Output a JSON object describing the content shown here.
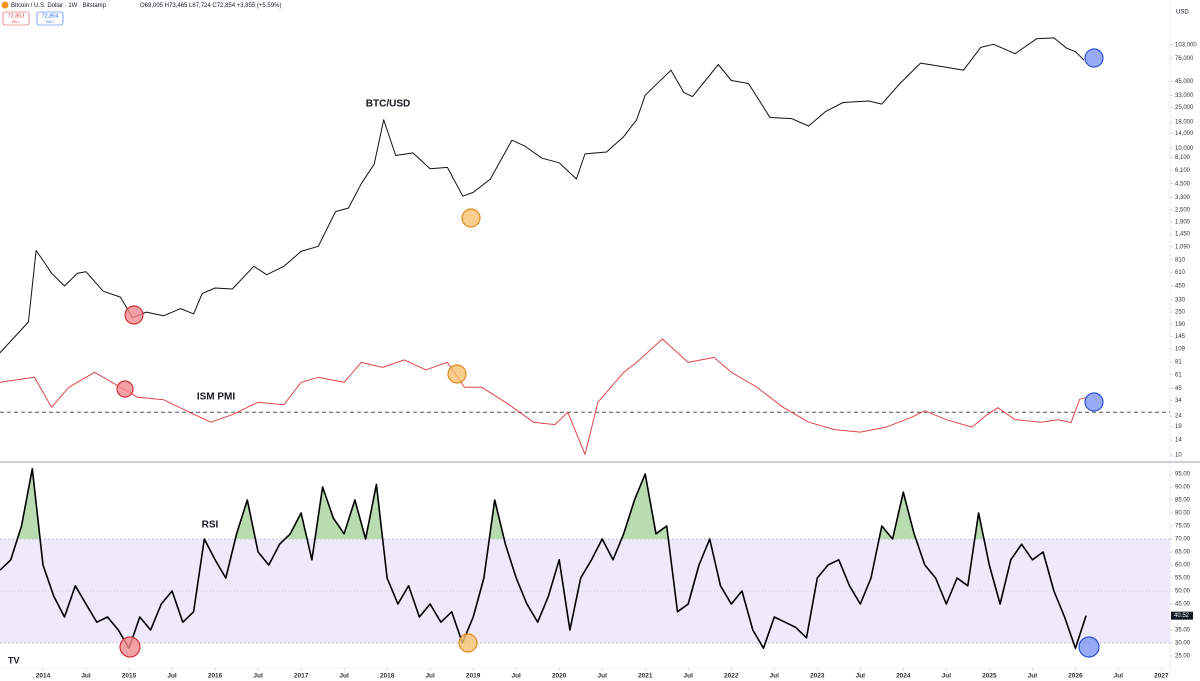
{
  "header": {
    "symbol": "Bitcoin / U.S. Dollar · 1W · Bitstamp",
    "ohlc": "O69,005 H73,465 L67,724 C72,854 +3,855 (+5.59%)",
    "sell_price": "72,853",
    "sell": "SELL",
    "buy_price": "72,854",
    "buy": "BUY",
    "currency": "USD"
  },
  "chart_data": [
    {
      "type": "line",
      "annotation": "BTC/USD",
      "color": "#111111",
      "log_scale": true,
      "xlim": [
        2013.5,
        2027.1
      ],
      "ylim": [
        10,
        150000
      ],
      "x": [
        2013.5,
        2013.83,
        2013.92,
        2014.0,
        2014.1,
        2014.25,
        2014.4,
        2014.5,
        2014.7,
        2014.9,
        2015.04,
        2015.2,
        2015.4,
        2015.6,
        2015.75,
        2015.85,
        2016.0,
        2016.2,
        2016.45,
        2016.6,
        2016.8,
        2017.0,
        2017.2,
        2017.4,
        2017.55,
        2017.7,
        2017.85,
        2017.96,
        2018.1,
        2018.3,
        2018.5,
        2018.7,
        2018.88,
        2019.0,
        2019.2,
        2019.45,
        2019.6,
        2019.8,
        2020.0,
        2020.2,
        2020.3,
        2020.55,
        2020.75,
        2020.9,
        2021.0,
        2021.3,
        2021.45,
        2021.55,
        2021.85,
        2022.0,
        2022.2,
        2022.45,
        2022.7,
        2022.9,
        2023.1,
        2023.3,
        2023.6,
        2023.75,
        2023.95,
        2024.2,
        2024.5,
        2024.7,
        2024.9,
        2025.05,
        2025.3,
        2025.55,
        2025.75,
        2025.9,
        2026.0,
        2026.1
      ],
      "values": [
        100,
        200,
        1000,
        800,
        600,
        450,
        600,
        620,
        400,
        350,
        220,
        250,
        230,
        270,
        240,
        380,
        430,
        420,
        700,
        580,
        700,
        980,
        1100,
        2400,
        2600,
        4500,
        7000,
        19000,
        8500,
        9000,
        6300,
        6500,
        3400,
        3700,
        5000,
        12000,
        10500,
        8000,
        7200,
        5000,
        8800,
        9200,
        13000,
        19000,
        33000,
        58000,
        35000,
        32000,
        66000,
        46000,
        43000,
        20000,
        19500,
        16500,
        23000,
        28000,
        29000,
        27000,
        42000,
        68000,
        62000,
        58000,
        97000,
        104000,
        84000,
        118000,
        120000,
        95000,
        88000,
        72854
      ],
      "yticks": [
        {
          "value": 103000,
          "label": "103,000"
        },
        {
          "value": 76000,
          "label": "76,000"
        },
        {
          "value": 45000,
          "label": "45,000"
        },
        {
          "value": 33000,
          "label": "33,000"
        },
        {
          "value": 25000,
          "label": "25,000"
        },
        {
          "value": 18000,
          "label": "18,000"
        },
        {
          "value": 14000,
          "label": "14,000"
        },
        {
          "value": 10000,
          "label": "10,000"
        },
        {
          "value": 8100,
          "label": "8,100"
        },
        {
          "value": 6100,
          "label": "6,100"
        },
        {
          "value": 4500,
          "label": "4,500"
        },
        {
          "value": 3300,
          "label": "3,300"
        },
        {
          "value": 2500,
          "label": "2,500"
        },
        {
          "value": 1900,
          "label": "1,900"
        },
        {
          "value": 1450,
          "label": "1,450"
        },
        {
          "value": 1090,
          "label": "1,090"
        },
        810,
        610,
        450,
        330,
        250,
        190,
        145,
        109,
        81,
        61,
        45,
        34,
        24,
        19,
        14,
        10
      ]
    },
    {
      "type": "line",
      "annotation": "ISM PMI",
      "color": "#e0474c",
      "xlim": [
        2013.5,
        2027.1
      ],
      "ylim": [
        40,
        66.5
      ],
      "reference_line": 50,
      "x": [
        2013.5,
        2013.9,
        2014.1,
        2014.3,
        2014.6,
        2014.9,
        2015.1,
        2015.4,
        2015.7,
        2015.95,
        2016.2,
        2016.5,
        2016.8,
        2017.0,
        2017.2,
        2017.5,
        2017.7,
        2017.95,
        2018.2,
        2018.45,
        2018.7,
        2018.9,
        2019.1,
        2019.4,
        2019.7,
        2019.95,
        2020.1,
        2020.3,
        2020.45,
        2020.75,
        2020.9,
        2021.2,
        2021.5,
        2021.8,
        2022.0,
        2022.3,
        2022.6,
        2022.9,
        2023.2,
        2023.5,
        2023.8,
        2024.1,
        2024.25,
        2024.5,
        2024.8,
        2024.95,
        2025.1,
        2025.3,
        2025.6,
        2025.8,
        2025.95,
        2026.05,
        2026.15
      ],
      "values": [
        56,
        57,
        51,
        55,
        58,
        55,
        53,
        52.5,
        50,
        48,
        49.5,
        52,
        51.5,
        56,
        57,
        56,
        60,
        59,
        60.5,
        58.5,
        60,
        55,
        55,
        51.7,
        48,
        47.5,
        50,
        41.5,
        52,
        58,
        60,
        64.7,
        60,
        61,
        58,
        55,
        51,
        48,
        46.5,
        46,
        47,
        49,
        50.3,
        48.5,
        47,
        49.2,
        50.9,
        48.5,
        48,
        48.5,
        47.9,
        52.6,
        53
      ]
    },
    {
      "type": "line",
      "annotation": "RSI",
      "color": "#000000",
      "xlim": [
        2013.5,
        2027.1
      ],
      "ylim": [
        23,
        100
      ],
      "band": [
        30,
        70
      ],
      "midline": 50,
      "band_color": "#efeafb",
      "overbought_color": "#b8dbb0",
      "x": [
        2013.5,
        2013.625,
        2013.75,
        2013.875,
        2014.0,
        2014.125,
        2014.25,
        2014.375,
        2014.5,
        2014.625,
        2014.75,
        2014.875,
        2015.0,
        2015.125,
        2015.25,
        2015.375,
        2015.5,
        2015.625,
        2015.75,
        2015.875,
        2016.0,
        2016.125,
        2016.25,
        2016.375,
        2016.5,
        2016.625,
        2016.75,
        2016.875,
        2017.0,
        2017.125,
        2017.25,
        2017.375,
        2017.5,
        2017.625,
        2017.75,
        2017.875,
        2018.0,
        2018.125,
        2018.25,
        2018.375,
        2018.5,
        2018.625,
        2018.75,
        2018.875,
        2019.0,
        2019.125,
        2019.25,
        2019.375,
        2019.5,
        2019.625,
        2019.75,
        2019.875,
        2020.0,
        2020.125,
        2020.25,
        2020.375,
        2020.5,
        2020.625,
        2020.75,
        2020.875,
        2021.0,
        2021.125,
        2021.25,
        2021.375,
        2021.5,
        2021.625,
        2021.75,
        2021.875,
        2022.0,
        2022.125,
        2022.25,
        2022.375,
        2022.5,
        2022.625,
        2022.75,
        2022.875,
        2023.0,
        2023.125,
        2023.25,
        2023.375,
        2023.5,
        2023.625,
        2023.75,
        2023.875,
        2024.0,
        2024.125,
        2024.25,
        2024.375,
        2024.5,
        2024.625,
        2024.75,
        2024.875,
        2025.0,
        2025.125,
        2025.25,
        2025.375,
        2025.5,
        2025.625,
        2025.75,
        2025.875,
        2026.0,
        2026.125
      ],
      "values": [
        58,
        62,
        75,
        97,
        60,
        48,
        40,
        52,
        45,
        38,
        40,
        35,
        28,
        40,
        35,
        45,
        50,
        38,
        42,
        70,
        62,
        55,
        72,
        85,
        65,
        60,
        68,
        72,
        80,
        62,
        90,
        78,
        72,
        85,
        70,
        91,
        55,
        45,
        52,
        40,
        45,
        38,
        42,
        30,
        40,
        55,
        85,
        68,
        55,
        45,
        38,
        48,
        62,
        35,
        55,
        62,
        70,
        62,
        72,
        85,
        95,
        72,
        75,
        42,
        45,
        60,
        70,
        52,
        45,
        50,
        35,
        28,
        40,
        38,
        36,
        32,
        55,
        60,
        62,
        52,
        45,
        55,
        75,
        70,
        88,
        72,
        60,
        55,
        45,
        55,
        52,
        80,
        60,
        45,
        62,
        68,
        62,
        65,
        50,
        40,
        28,
        40.52
      ],
      "value_labels": {
        "last": "40.52"
      },
      "yticks": [
        {
          "value": 95,
          "label": "95.00"
        },
        {
          "value": 90,
          "label": "90.00"
        },
        {
          "value": 85,
          "label": "85.00"
        },
        {
          "value": 80,
          "label": "80.00"
        },
        {
          "value": 75,
          "label": "75.00"
        },
        {
          "value": 70,
          "label": "70.00"
        },
        {
          "value": 65,
          "label": "65.00"
        },
        {
          "value": 60,
          "label": "60.00"
        },
        {
          "value": 55,
          "label": "55.00"
        },
        {
          "value": 50,
          "label": "50.00"
        },
        {
          "value": 45,
          "label": "45.00"
        },
        {
          "value": 35,
          "label": "35.00"
        },
        {
          "value": 30,
          "label": "30.00"
        },
        {
          "value": 25,
          "label": "25.00"
        }
      ],
      "xticks": [
        {
          "value": 2014,
          "label": "2014"
        },
        {
          "value": 2014.5,
          "label": "Jul"
        },
        {
          "value": 2015,
          "label": "2015"
        },
        {
          "value": 2015.5,
          "label": "Jul"
        },
        {
          "value": 2016,
          "label": "2016"
        },
        {
          "value": 2016.5,
          "label": "Jul"
        },
        {
          "value": 2017,
          "label": "2017"
        },
        {
          "value": 2017.5,
          "label": "Jul"
        },
        {
          "value": 2018,
          "label": "2018"
        },
        {
          "value": 2018.5,
          "label": "Jul"
        },
        {
          "value": 2019,
          "label": "2019"
        },
        {
          "value": 2019.5,
          "label": "Jul"
        },
        {
          "value": 2020,
          "label": "2020"
        },
        {
          "value": 2020.5,
          "label": "Jul"
        },
        {
          "value": 2021,
          "label": "2021"
        },
        {
          "value": 2021.5,
          "label": "Jul"
        },
        {
          "value": 2022,
          "label": "2022"
        },
        {
          "value": 2022.5,
          "label": "Jul"
        },
        {
          "value": 2023,
          "label": "2023"
        },
        {
          "value": 2023.5,
          "label": "Jul"
        },
        {
          "value": 2024,
          "label": "2024"
        },
        {
          "value": 2024.5,
          "label": "Jul"
        },
        {
          "value": 2025,
          "label": "2025"
        },
        {
          "value": 2025.5,
          "label": "Jul"
        },
        {
          "value": 2026,
          "label": "2026"
        },
        {
          "value": 2026.5,
          "label": "Jul"
        },
        {
          "value": 2027,
          "label": "2027"
        }
      ]
    }
  ]
}
